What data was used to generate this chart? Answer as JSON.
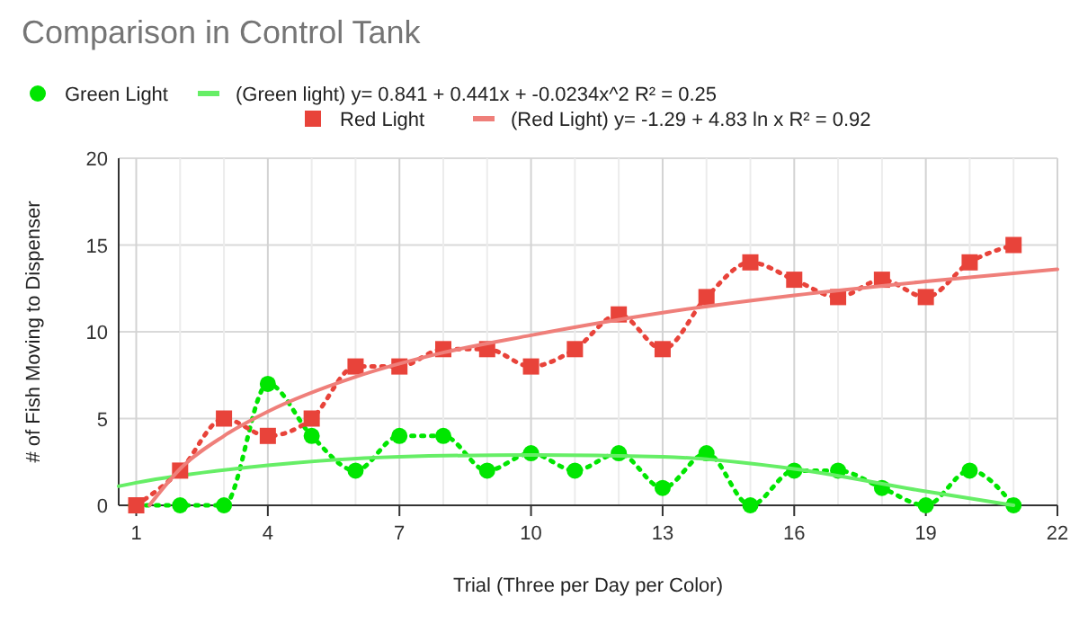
{
  "chart_data": {
    "type": "line",
    "title": "Comparison in Control Tank",
    "xlabel": "Trial (Three per Day per Color)",
    "ylabel": "# of Fish Moving to Dispenser",
    "x": [
      1,
      2,
      3,
      4,
      5,
      6,
      7,
      8,
      9,
      10,
      11,
      12,
      13,
      14,
      15,
      16,
      17,
      18,
      19,
      20,
      21
    ],
    "series": [
      {
        "name": "Green Light",
        "color": "#00e600",
        "marker": "circle",
        "line_style": "dotted",
        "values": [
          0,
          0,
          0,
          7,
          4,
          2,
          4,
          4,
          2,
          3,
          2,
          3,
          1,
          3,
          0,
          2,
          2,
          1,
          0,
          2,
          0
        ]
      },
      {
        "name": "(Green light) y= 0.841 + 0.441x + -0.0234x^2   R² = 0.25",
        "color": "#66ee66",
        "marker": "none",
        "line_style": "solid",
        "x": [
          0.6,
          1,
          4,
          7,
          10,
          13,
          16,
          19,
          21
        ],
        "values": [
          1.1,
          1.3,
          2.3,
          2.8,
          2.9,
          2.8,
          2.1,
          0.8,
          0
        ]
      },
      {
        "name": "Red Light",
        "color": "#e8433a",
        "marker": "square",
        "line_style": "dotted",
        "values": [
          0,
          2,
          5,
          4,
          5,
          8,
          8,
          9,
          9,
          8,
          9,
          11,
          9,
          12,
          14,
          13,
          12,
          13,
          12,
          14,
          15
        ]
      },
      {
        "name": "(Red Light) y= -1.29 + 4.83 ln x   R² = 0.92",
        "color": "#ef7f7a",
        "marker": "none",
        "line_style": "solid",
        "x": [
          1.3,
          2,
          3,
          4,
          6,
          8,
          10,
          13,
          16,
          19,
          22
        ],
        "values": [
          0,
          2.1,
          4,
          5.4,
          7.4,
          8.8,
          9.8,
          11.1,
          12.1,
          12.9,
          13.6
        ]
      }
    ],
    "xlim": [
      0.6,
      22
    ],
    "xticks": [
      1,
      {
        "value": 2,
        "label": null
      },
      {
        "value": 3,
        "label": null
      },
      4,
      {
        "value": 5,
        "label": null
      },
      {
        "value": 6,
        "label": null
      },
      7,
      {
        "value": 8,
        "label": null
      },
      {
        "value": 9,
        "label": null
      },
      10,
      {
        "value": 11,
        "label": null
      },
      {
        "value": 12,
        "label": null
      },
      13,
      {
        "value": 14,
        "label": null
      },
      {
        "value": 15,
        "label": null
      },
      16,
      {
        "value": 17,
        "label": null
      },
      {
        "value": 18,
        "label": null
      },
      19,
      {
        "value": 20,
        "label": null
      },
      {
        "value": 21,
        "label": null
      },
      22
    ],
    "ylim": [
      0,
      20
    ],
    "yticks": [
      0,
      5,
      10,
      15,
      20
    ],
    "grid": true,
    "legend": "top"
  }
}
